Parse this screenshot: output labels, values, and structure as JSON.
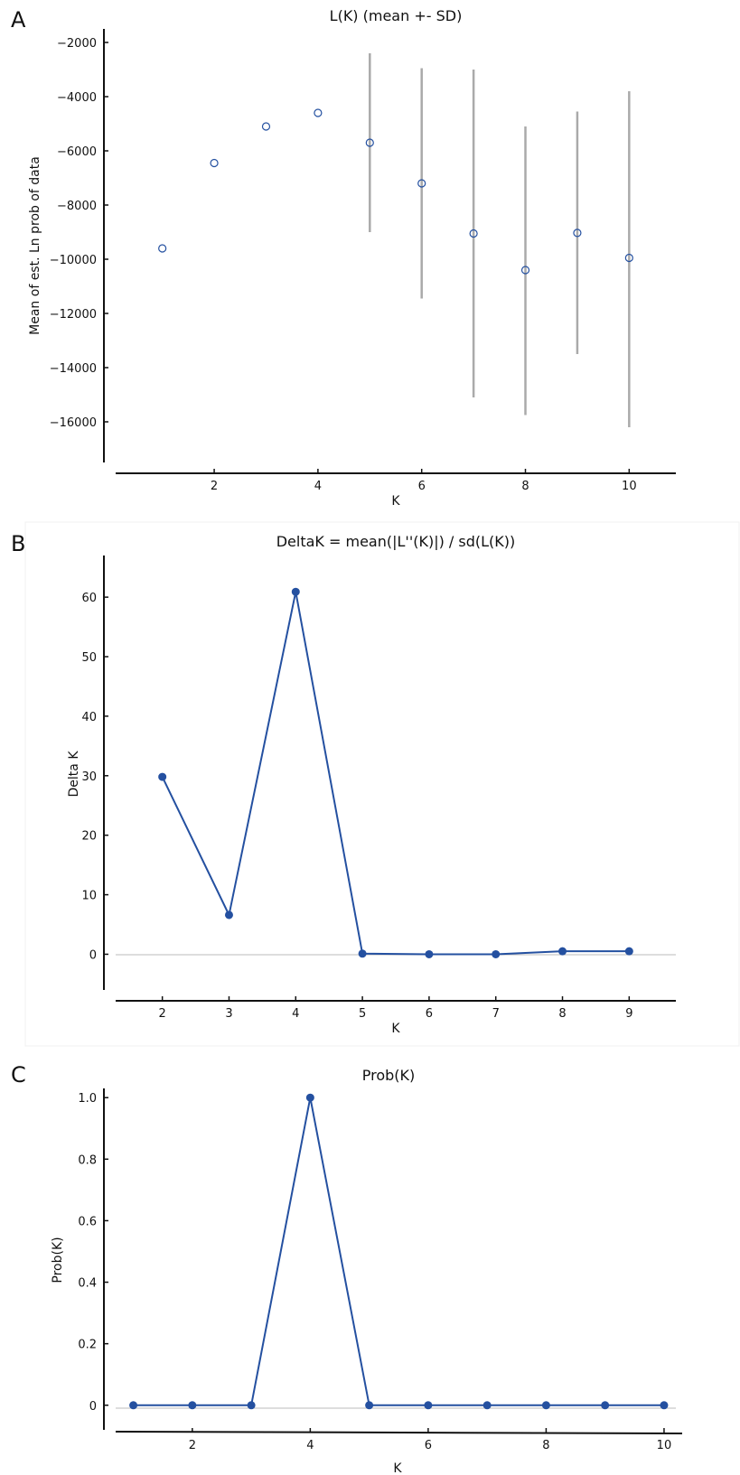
{
  "chart_data": [
    {
      "panel": "A",
      "type": "scatter",
      "title": "L(K) (mean +- SD)",
      "xlabel": "K",
      "ylabel": "Mean of est. Ln prob of data",
      "x_ticks": [
        2,
        4,
        6,
        8,
        10
      ],
      "y_ticks": [
        -2000,
        -4000,
        -6000,
        -8000,
        -10000,
        -12000,
        -14000,
        -16000
      ],
      "y_tick_labels": [
        "−2000",
        "−4000",
        "−6000",
        "−8000",
        "−10000",
        "−12000",
        "−14000",
        "−16000"
      ],
      "xlim": [
        0.1,
        10.9
      ],
      "ylim": [
        -17500,
        -1500
      ],
      "series": [
        {
          "x": [
            1,
            2,
            3,
            4,
            5,
            6,
            7,
            8,
            9,
            10
          ],
          "y": [
            -9600,
            -6450,
            -5100,
            -4600,
            -5700,
            -7200,
            -9050,
            -10400,
            -9030,
            -9950
          ],
          "error_low": [
            null,
            null,
            null,
            null,
            -9000,
            -11450,
            -15100,
            -15750,
            -13500,
            -16200
          ],
          "error_high": [
            null,
            null,
            null,
            null,
            -2400,
            -2950,
            -3000,
            -5100,
            -4550,
            -3800
          ]
        }
      ],
      "grid": false
    },
    {
      "panel": "B",
      "type": "line",
      "title": "DeltaK = mean(|L''(K)|) / sd(L(K))",
      "xlabel": "K",
      "ylabel": "Delta K",
      "x_ticks": [
        2,
        3,
        4,
        5,
        6,
        7,
        8,
        9
      ],
      "y_ticks": [
        0,
        10,
        20,
        30,
        40,
        50,
        60
      ],
      "y_tick_labels": [
        "0",
        "10",
        "20",
        "30",
        "40",
        "50",
        "60"
      ],
      "xlim": [
        1.3,
        9.7
      ],
      "ylim": [
        -6,
        67
      ],
      "series": [
        {
          "x": [
            2,
            3,
            4,
            5,
            6,
            7,
            8,
            9
          ],
          "y": [
            29.8,
            6.6,
            60.9,
            0.1,
            0.0,
            0.0,
            0.5,
            0.5
          ]
        }
      ],
      "grid": false
    },
    {
      "panel": "C",
      "type": "line",
      "title": "Prob(K)",
      "xlabel": "K",
      "ylabel": "Prob(K)",
      "x_ticks": [
        2,
        4,
        6,
        8,
        10
      ],
      "y_ticks": [
        0,
        0.2,
        0.4,
        0.6,
        0.8,
        1.0
      ],
      "y_tick_labels": [
        "0",
        "0.2",
        "0.4",
        "0.6",
        "0.8",
        "1.0"
      ],
      "xlim": [
        0.7,
        10.2
      ],
      "ylim": [
        -0.08,
        1.03
      ],
      "series": [
        {
          "x": [
            1,
            2,
            3,
            4,
            5,
            6,
            7,
            8,
            9,
            10
          ],
          "y": [
            0,
            0,
            0,
            1.0,
            0,
            0,
            0,
            0,
            0,
            0
          ]
        }
      ],
      "grid": false
    }
  ],
  "colors": {
    "series": "#2450a0",
    "error_bar": "#aaaaaa",
    "zero_line": "#bbbbbb",
    "axis": "#111111"
  }
}
